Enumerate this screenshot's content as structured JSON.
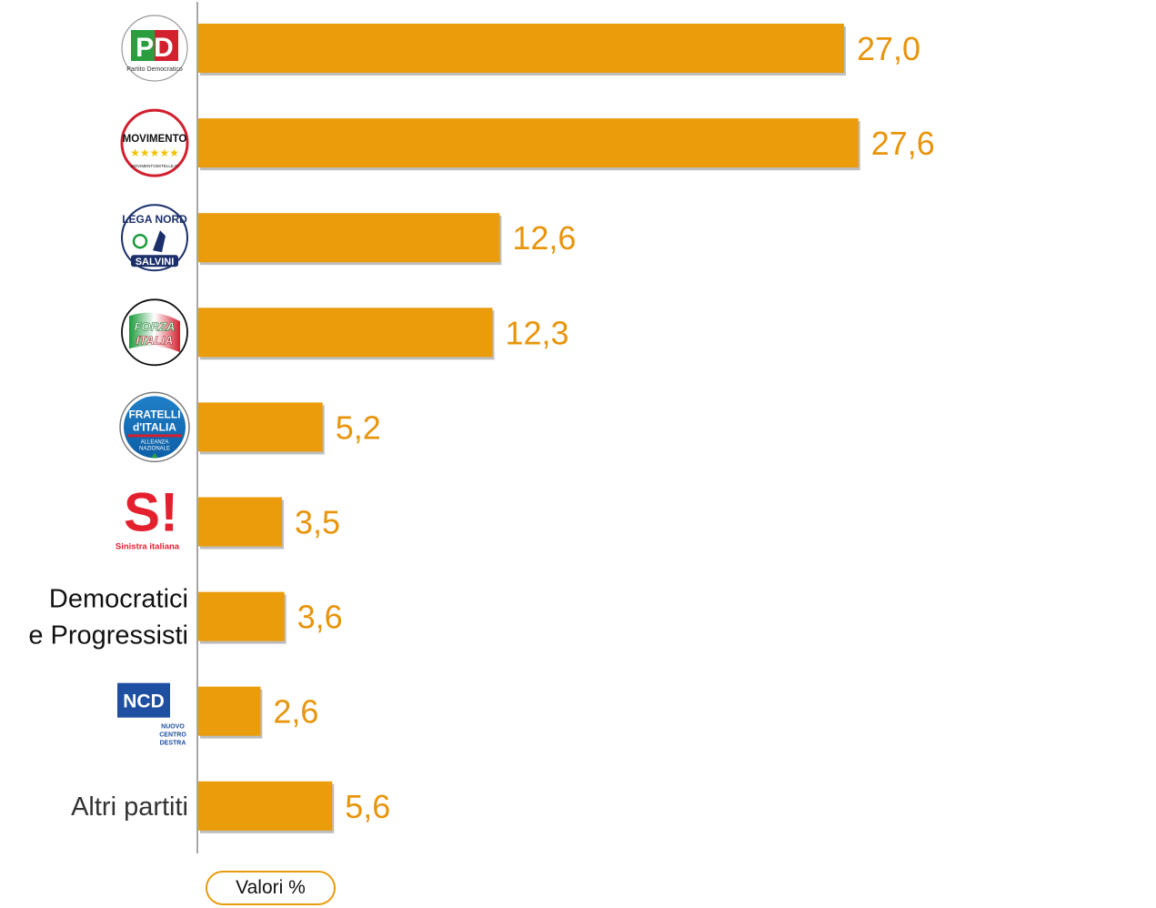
{
  "chart_data": {
    "type": "bar",
    "orientation": "horizontal",
    "categories": [
      "PD",
      "Movimento 5 Stelle",
      "Lega Nord Salvini",
      "Forza Italia",
      "Fratelli d'Italia - Alleanza Nazionale",
      "Sinistra Italiana",
      "Democratici e Progressisti",
      "NCD Nuovo Centro Destra",
      "Altri partiti"
    ],
    "category_display": [
      {
        "kind": "logo",
        "logo": "pd"
      },
      {
        "kind": "logo",
        "logo": "m5s"
      },
      {
        "kind": "logo",
        "logo": "lega"
      },
      {
        "kind": "logo",
        "logo": "fi"
      },
      {
        "kind": "logo",
        "logo": "fdi"
      },
      {
        "kind": "logo",
        "logo": "si"
      },
      {
        "kind": "text",
        "lines": [
          "Democratici",
          "e Progressisti"
        ]
      },
      {
        "kind": "logo",
        "logo": "ncd"
      },
      {
        "kind": "text",
        "lines": [
          "Altri partiti"
        ]
      }
    ],
    "values": [
      27.0,
      27.6,
      12.6,
      12.3,
      5.2,
      3.5,
      3.6,
      2.6,
      5.6
    ],
    "value_labels": [
      "27,0",
      "27,6",
      "12,6",
      "12,3",
      "5,2",
      "3,5",
      "3,6",
      "2,6",
      "5,6"
    ],
    "xlim": [
      0,
      40
    ],
    "grid": false,
    "legend_text": "Valori %",
    "colors": {
      "bar": "#EB9C0A",
      "value_text": "#E8950C",
      "axis": "#888888",
      "shadow": "#bdbdbd"
    }
  },
  "logos": {
    "pd": {
      "letters": "PD",
      "caption": "Partito Democratico"
    },
    "m5s": {
      "text": "MOVIMENTO",
      "stars": "★★★★★",
      "caption": "MOVIMENTO5STELLE.IT"
    },
    "lega": {
      "text": "LEGA NORD",
      "caption": "SALVINI"
    },
    "fi": {
      "line1": "FORZA",
      "line2": "ITALIA"
    },
    "fdi": {
      "line1": "FRATELLI",
      "line2": "d'ITALIA",
      "caption1": "ALLEANZA",
      "caption2": "NAZIONALE"
    },
    "si": {
      "mark": "S!",
      "caption": "Sinistra italiana"
    },
    "ncd": {
      "letters": "NCD",
      "caption1": "NUOVO",
      "caption2": "CENTRO",
      "caption3": "DESTRA"
    }
  }
}
